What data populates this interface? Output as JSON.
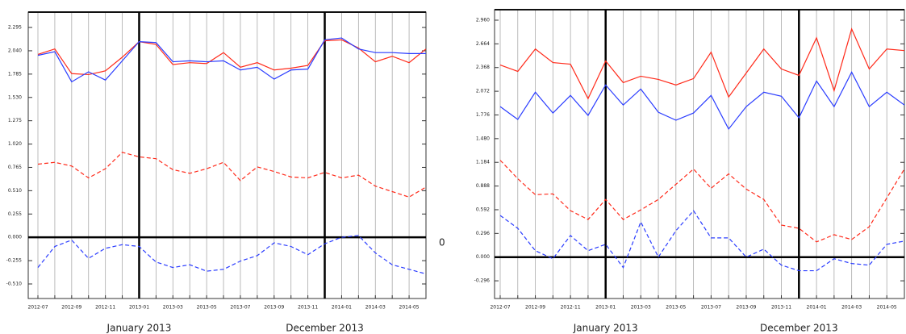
{
  "chart_data": [
    {
      "type": "line",
      "categories": [
        "2012-07",
        null,
        "2012-09",
        null,
        "2012-11",
        null,
        "2013-01",
        null,
        "2013-03",
        null,
        "2013-05",
        null,
        "2013-07",
        null,
        "2013-09",
        null,
        "2013-11",
        null,
        "2014-01",
        null,
        "2014-03",
        null,
        "2014-05",
        null
      ],
      "series": [
        {
          "color": "#ff2a1a",
          "style": "solid",
          "values": [
            2.0,
            2.06,
            1.79,
            1.78,
            1.82,
            1.97,
            2.14,
            2.11,
            1.89,
            1.91,
            1.9,
            2.02,
            1.86,
            1.91,
            1.83,
            1.85,
            1.88,
            2.15,
            2.16,
            2.07,
            1.92,
            1.98,
            1.91,
            2.06
          ]
        },
        {
          "color": "#2a3cff",
          "style": "solid",
          "values": [
            1.99,
            2.03,
            1.7,
            1.81,
            1.72,
            1.93,
            2.14,
            2.13,
            1.92,
            1.93,
            1.92,
            1.93,
            1.83,
            1.86,
            1.73,
            1.83,
            1.84,
            2.16,
            2.18,
            2.06,
            2.02,
            2.02,
            2.01,
            2.01
          ]
        },
        {
          "color": "#ff2a1a",
          "style": "dashed",
          "values": [
            0.8,
            0.82,
            0.78,
            0.65,
            0.75,
            0.93,
            0.88,
            0.86,
            0.74,
            0.7,
            0.75,
            0.82,
            0.62,
            0.77,
            0.72,
            0.66,
            0.65,
            0.71,
            0.65,
            0.68,
            0.56,
            0.5,
            0.44,
            0.55
          ]
        },
        {
          "color": "#2a3cff",
          "style": "dashed",
          "values": [
            -0.33,
            -0.1,
            -0.03,
            -0.23,
            -0.12,
            -0.08,
            -0.1,
            -0.27,
            -0.33,
            -0.3,
            -0.37,
            -0.35,
            -0.26,
            -0.2,
            -0.06,
            -0.1,
            -0.19,
            -0.07,
            0.0,
            0.02,
            -0.17,
            -0.3,
            -0.35,
            -0.4
          ]
        }
      ],
      "ylim": [
        -0.669,
        2.463
      ],
      "yticks": [
        {
          "value": -0.51,
          "label": "-0.510"
        },
        {
          "value": -0.255,
          "label": "-0.255"
        },
        {
          "value": 0,
          "label": "0.000"
        },
        {
          "value": 0.255,
          "label": "0.255"
        },
        {
          "value": 0.51,
          "label": "0.510"
        },
        {
          "value": 0.765,
          "label": "0.765"
        },
        {
          "value": 1.02,
          "label": "1.020"
        },
        {
          "value": 1.275,
          "label": "1.275"
        },
        {
          "value": 1.53,
          "label": "1.530"
        },
        {
          "value": 1.785,
          "label": "1.785"
        },
        {
          "value": 2.04,
          "label": "2.040"
        },
        {
          "value": 2.295,
          "label": "2.295"
        }
      ],
      "annotations": [
        {
          "text": "January 2013",
          "index": 6
        },
        {
          "text": "December 2013",
          "index": 17
        }
      ],
      "right_label": {
        "value": 0,
        "label": "0"
      },
      "grid": true
    },
    {
      "type": "line",
      "categories": [
        "2012-07",
        null,
        "2012-09",
        null,
        "2012-11",
        null,
        "2013-01",
        null,
        "2013-03",
        null,
        "2013-05",
        null,
        "2013-07",
        null,
        "2013-09",
        null,
        "2013-11",
        null,
        "2014-01",
        null,
        "2014-03",
        null,
        "2014-05",
        null
      ],
      "series": [
        {
          "color": "#ff2a1a",
          "style": "solid",
          "values": [
            2.4,
            2.32,
            2.6,
            2.43,
            2.41,
            1.98,
            2.45,
            2.18,
            2.26,
            2.22,
            2.15,
            2.23,
            2.56,
            2.0,
            2.3,
            2.6,
            2.35,
            2.27,
            2.74,
            2.08,
            2.85,
            2.35,
            2.6,
            2.58
          ]
        },
        {
          "color": "#2a3cff",
          "style": "solid",
          "values": [
            1.88,
            1.72,
            2.06,
            1.8,
            2.02,
            1.77,
            2.15,
            1.9,
            2.1,
            1.81,
            1.71,
            1.8,
            2.02,
            1.6,
            1.88,
            2.06,
            2.01,
            1.74,
            2.2,
            1.88,
            2.31,
            1.88,
            2.06,
            1.9
          ]
        },
        {
          "color": "#ff2a1a",
          "style": "dashed",
          "values": [
            1.21,
            0.98,
            0.78,
            0.79,
            0.58,
            0.47,
            0.72,
            0.47,
            0.59,
            0.72,
            0.91,
            1.1,
            0.86,
            1.04,
            0.85,
            0.72,
            0.4,
            0.36,
            0.19,
            0.28,
            0.22,
            0.38,
            0.74,
            1.1
          ]
        },
        {
          "color": "#2a3cff",
          "style": "dashed",
          "values": [
            0.52,
            0.36,
            0.08,
            -0.02,
            0.27,
            0.08,
            0.16,
            -0.13,
            0.44,
            0.0,
            0.33,
            0.58,
            0.24,
            0.24,
            0.0,
            0.1,
            -0.1,
            -0.17,
            -0.17,
            -0.02,
            -0.08,
            -0.1,
            0.16,
            0.2
          ]
        }
      ],
      "ylim": [
        -0.517,
        3.091
      ],
      "yticks": [
        {
          "value": -0.296,
          "label": "-0.296"
        },
        {
          "value": 0,
          "label": "0.000"
        },
        {
          "value": 0.296,
          "label": "0.296"
        },
        {
          "value": 0.592,
          "label": "0.592"
        },
        {
          "value": 0.888,
          "label": "0.888"
        },
        {
          "value": 1.184,
          "label": "1.184"
        },
        {
          "value": 1.48,
          "label": "1.480"
        },
        {
          "value": 1.776,
          "label": "1.776"
        },
        {
          "value": 2.072,
          "label": "2.072"
        },
        {
          "value": 2.368,
          "label": "2.368"
        },
        {
          "value": 2.664,
          "label": "2.664"
        },
        {
          "value": 2.96,
          "label": "2.960"
        }
      ],
      "annotations": [
        {
          "text": "January 2013",
          "index": 6
        },
        {
          "text": "December 2013",
          "index": 17
        }
      ],
      "grid": true
    }
  ]
}
